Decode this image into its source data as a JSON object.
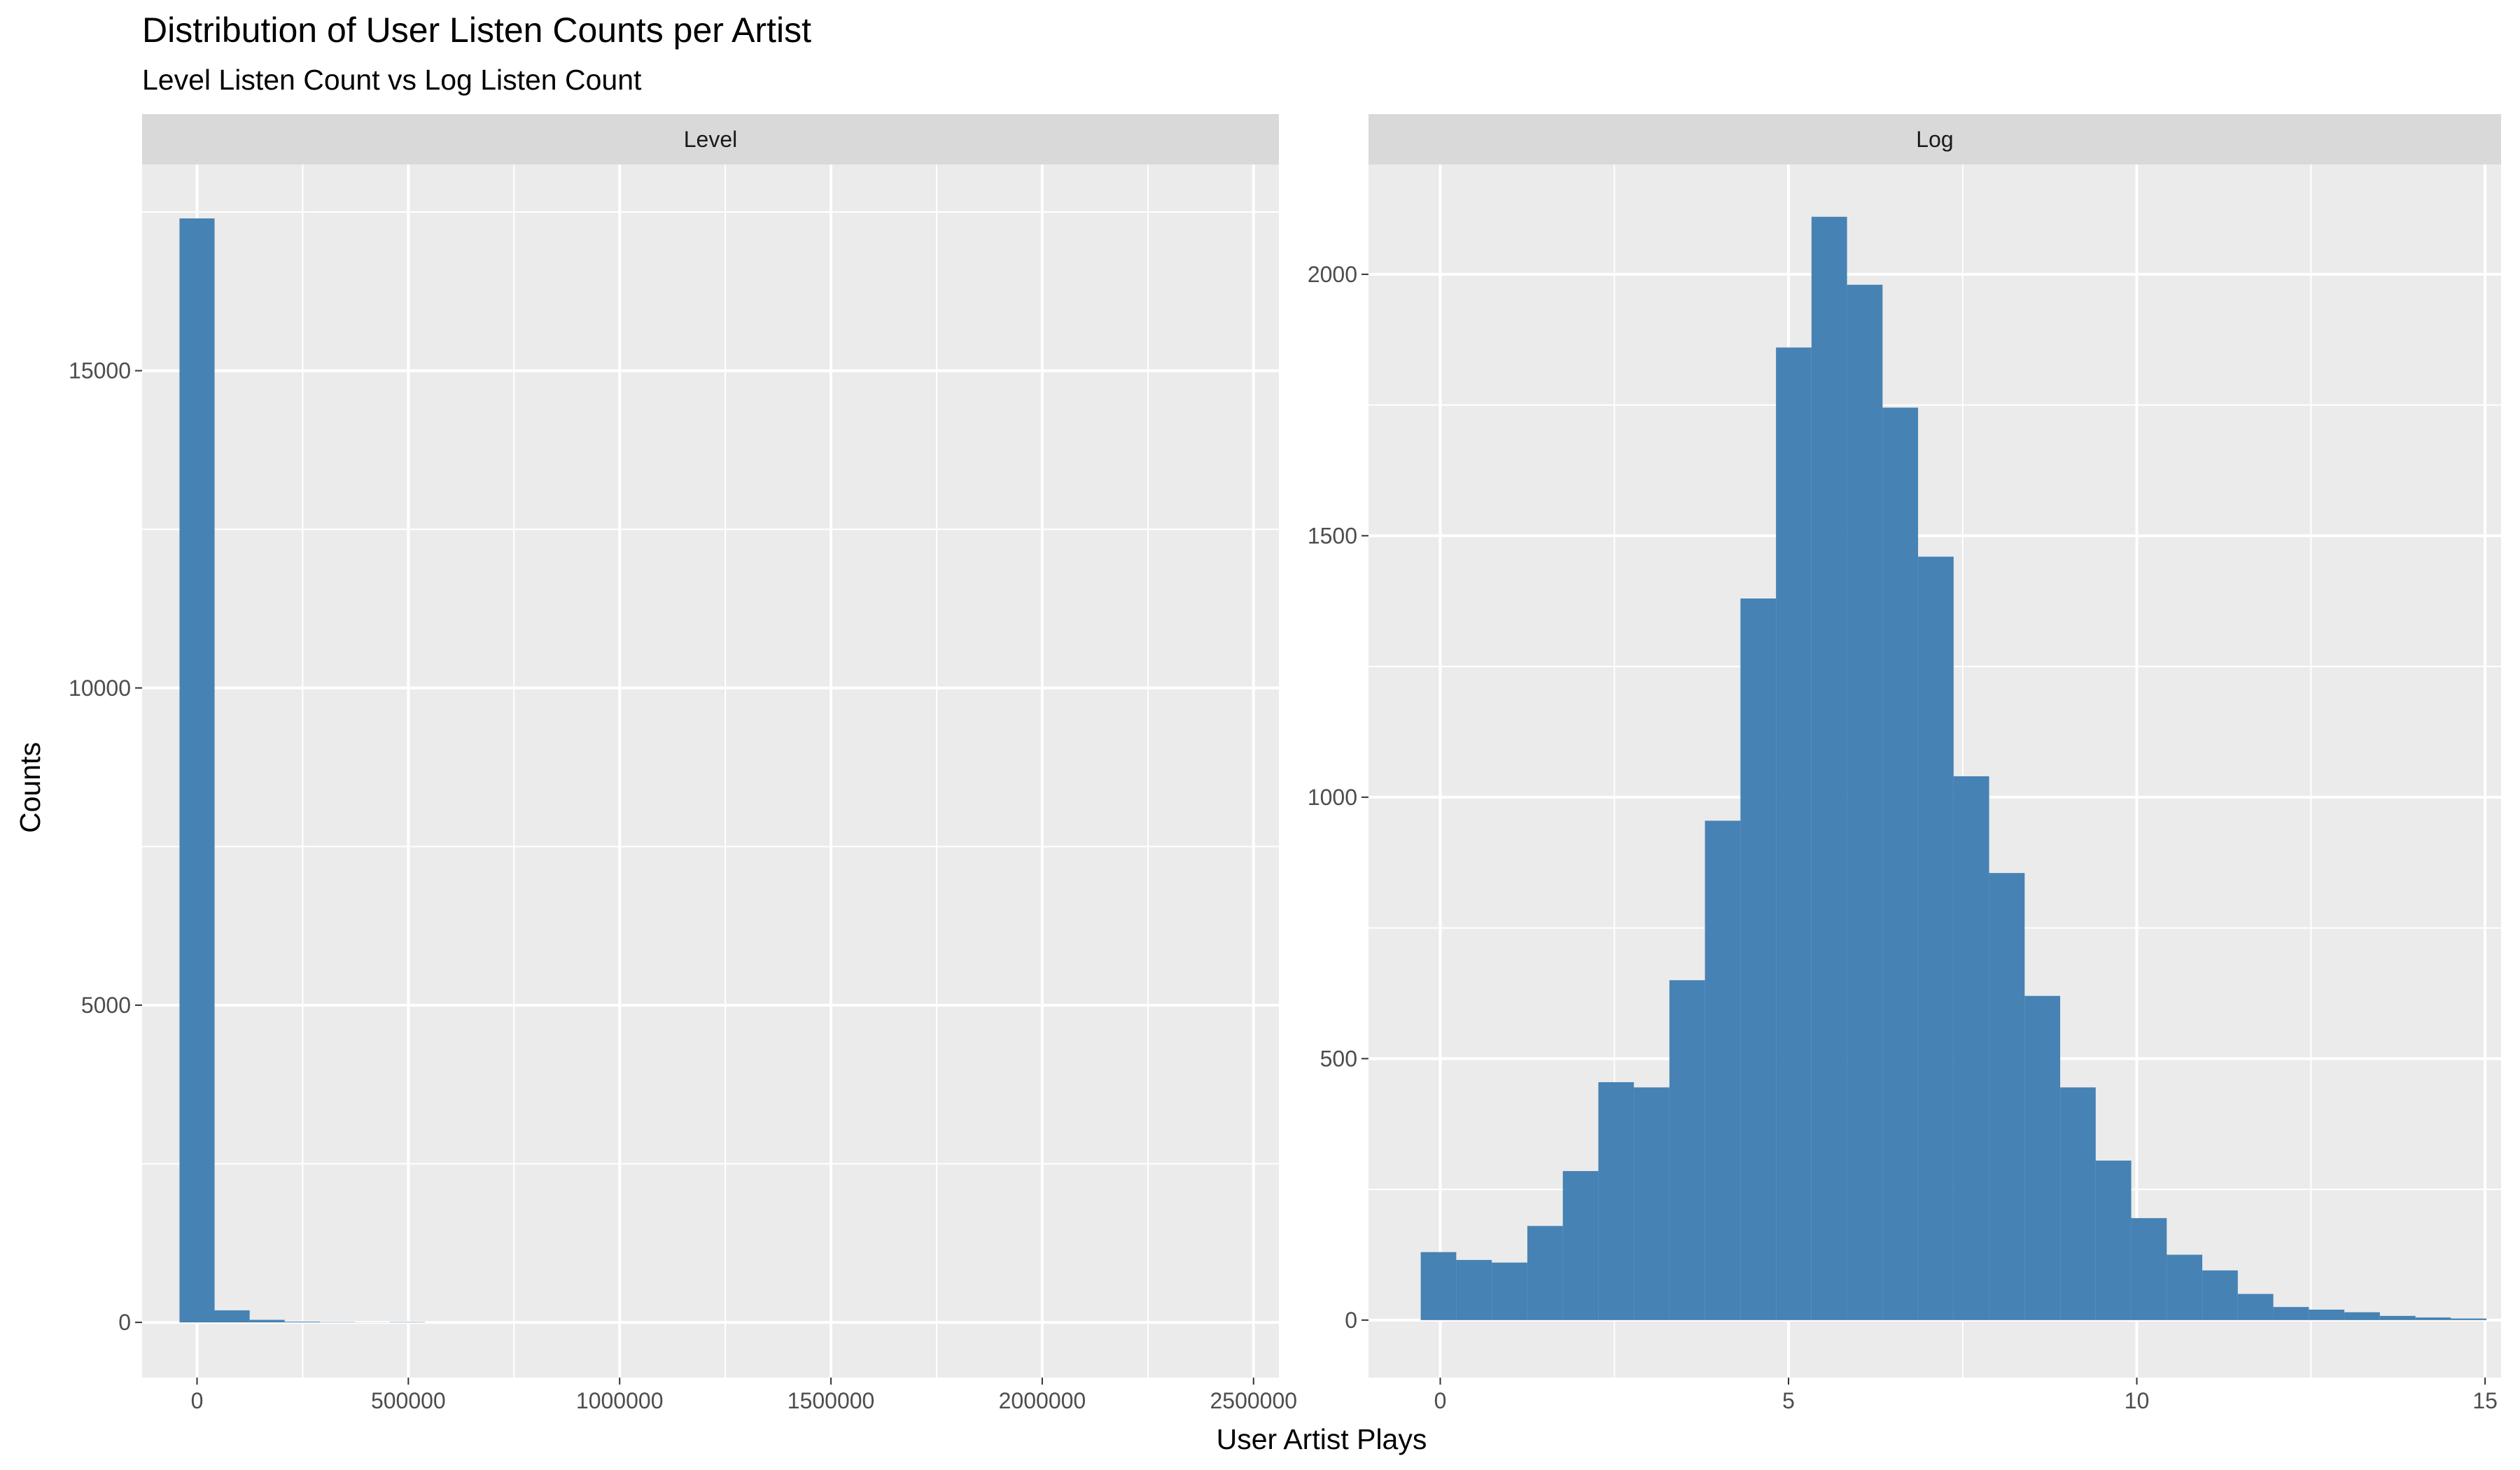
{
  "chart_data": {
    "type": "bar",
    "title": "Distribution of User Listen Counts per Artist",
    "subtitle": "Level Listen Count vs Log Listen Count",
    "xlabel": "User Artist Plays",
    "ylabel": "Counts",
    "grid": true,
    "legend": "none",
    "bar_color": "#4682B4",
    "panel_background": "#EBEBEB",
    "strip_background": "#D9D9D9",
    "panels": [
      {
        "facet": "Level",
        "xlim": [
          -130000,
          2560000
        ],
        "ylim": [
          -870,
          18250
        ],
        "x_breaks": [
          0,
          500000,
          1000000,
          1500000,
          2000000,
          2500000
        ],
        "x_tick_labels": [
          "0",
          "500000",
          "1000000",
          "1500000",
          "2000000",
          "2500000"
        ],
        "y_breaks": [
          0,
          5000,
          10000,
          15000
        ],
        "y_tick_labels": [
          "0",
          "5000",
          "10000",
          "15000"
        ],
        "bin_width": 83000,
        "bin_left_edges": [
          -41500,
          41500,
          124500,
          207500,
          290500,
          373500,
          456500
        ],
        "counts": [
          17400,
          190,
          40,
          12,
          6,
          2,
          6
        ]
      },
      {
        "facet": "Log",
        "xlim": [
          -1.03,
          15.23
        ],
        "ylim": [
          -110,
          2210
        ],
        "x_breaks": [
          0,
          5,
          10,
          15
        ],
        "x_tick_labels": [
          "0",
          "5",
          "10",
          "15"
        ],
        "y_breaks": [
          0,
          500,
          1000,
          1500,
          2000
        ],
        "y_tick_labels": [
          "0",
          "500",
          "1000",
          "1500",
          "2000"
        ],
        "bin_width": 0.51,
        "bin_left_edges": [
          -0.28,
          0.23,
          0.74,
          1.25,
          1.76,
          2.27,
          2.78,
          3.29,
          3.8,
          4.31,
          4.82,
          5.33,
          5.84,
          6.35,
          6.86,
          7.37,
          7.88,
          8.39,
          8.9,
          9.41,
          9.92,
          10.43,
          10.94,
          11.45,
          11.96,
          12.47,
          12.98,
          13.49,
          14.0,
          14.51
        ],
        "counts": [
          130,
          115,
          110,
          180,
          285,
          455,
          445,
          650,
          955,
          1380,
          1860,
          2110,
          1980,
          1745,
          1460,
          1040,
          855,
          620,
          445,
          305,
          195,
          125,
          95,
          50,
          25,
          20,
          15,
          8,
          5,
          3
        ]
      }
    ]
  }
}
